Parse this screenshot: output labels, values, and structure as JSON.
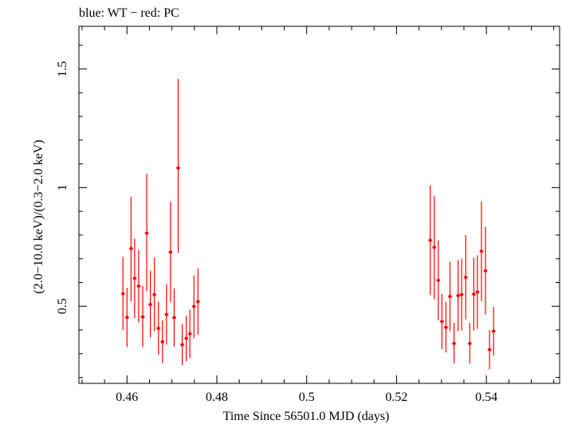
{
  "chart_data": {
    "type": "scatter",
    "title": "blue: WT − red: PC",
    "xlabel": "Time Since 56501.0 MJD (days)",
    "ylabel": "(2.0−10.0 keV)/(0.3−2.0 keV)",
    "xlim": [
      0.4493,
      0.5563
    ],
    "ylim": [
      0.175,
      1.68
    ],
    "x_ticks": [
      {
        "value": 0.46,
        "label": "0.46"
      },
      {
        "value": 0.48,
        "label": "0.48"
      },
      {
        "value": 0.5,
        "label": "0.5"
      },
      {
        "value": 0.52,
        "label": "0.52"
      },
      {
        "value": 0.54,
        "label": "0.54"
      }
    ],
    "y_ticks": [
      {
        "value": 0.5,
        "label": "0.5"
      },
      {
        "value": 1,
        "label": "1"
      },
      {
        "value": 1.5,
        "label": "1.5"
      }
    ],
    "grid": false,
    "series": [
      {
        "color": "#ff0000",
        "points": [
          {
            "x": 0.4591,
            "y": 0.553,
            "ylo": 0.4,
            "yhi": 0.708
          },
          {
            "x": 0.46,
            "y": 0.453,
            "ylo": 0.328,
            "yhi": 0.578
          },
          {
            "x": 0.4609,
            "y": 0.743,
            "ylo": 0.52,
            "yhi": 0.962
          },
          {
            "x": 0.4617,
            "y": 0.618,
            "ylo": 0.45,
            "yhi": 0.785
          },
          {
            "x": 0.4626,
            "y": 0.585,
            "ylo": 0.432,
            "yhi": 0.738
          },
          {
            "x": 0.4635,
            "y": 0.455,
            "ylo": 0.328,
            "yhi": 0.585
          },
          {
            "x": 0.4644,
            "y": 0.808,
            "ylo": 0.563,
            "yhi": 1.058
          },
          {
            "x": 0.4652,
            "y": 0.507,
            "ylo": 0.368,
            "yhi": 0.65
          },
          {
            "x": 0.4661,
            "y": 0.549,
            "ylo": 0.395,
            "yhi": 0.705
          },
          {
            "x": 0.467,
            "y": 0.407,
            "ylo": 0.295,
            "yhi": 0.518
          },
          {
            "x": 0.4679,
            "y": 0.35,
            "ylo": 0.26,
            "yhi": 0.44
          },
          {
            "x": 0.4688,
            "y": 0.465,
            "ylo": 0.338,
            "yhi": 0.592
          },
          {
            "x": 0.4697,
            "y": 0.728,
            "ylo": 0.518,
            "yhi": 0.94
          },
          {
            "x": 0.4705,
            "y": 0.452,
            "ylo": 0.33,
            "yhi": 0.575
          },
          {
            "x": 0.4714,
            "y": 1.083,
            "ylo": 0.725,
            "yhi": 1.458
          },
          {
            "x": 0.4723,
            "y": 0.338,
            "ylo": 0.252,
            "yhi": 0.425
          },
          {
            "x": 0.4732,
            "y": 0.365,
            "ylo": 0.268,
            "yhi": 0.46
          },
          {
            "x": 0.474,
            "y": 0.384,
            "ylo": 0.282,
            "yhi": 0.486
          },
          {
            "x": 0.4749,
            "y": 0.499,
            "ylo": 0.365,
            "yhi": 0.63
          },
          {
            "x": 0.4758,
            "y": 0.519,
            "ylo": 0.38,
            "yhi": 0.66
          },
          {
            "x": 0.5275,
            "y": 0.778,
            "ylo": 0.548,
            "yhi": 1.01
          },
          {
            "x": 0.5284,
            "y": 0.748,
            "ylo": 0.53,
            "yhi": 0.965
          },
          {
            "x": 0.5293,
            "y": 0.609,
            "ylo": 0.44,
            "yhi": 0.778
          },
          {
            "x": 0.5301,
            "y": 0.436,
            "ylo": 0.32,
            "yhi": 0.552
          },
          {
            "x": 0.531,
            "y": 0.411,
            "ylo": 0.305,
            "yhi": 0.518
          },
          {
            "x": 0.5319,
            "y": 0.541,
            "ylo": 0.395,
            "yhi": 0.688
          },
          {
            "x": 0.5328,
            "y": 0.343,
            "ylo": 0.258,
            "yhi": 0.43
          },
          {
            "x": 0.5337,
            "y": 0.545,
            "ylo": 0.395,
            "yhi": 0.695
          },
          {
            "x": 0.5345,
            "y": 0.549,
            "ylo": 0.398,
            "yhi": 0.7
          },
          {
            "x": 0.5354,
            "y": 0.622,
            "ylo": 0.445,
            "yhi": 0.8
          },
          {
            "x": 0.5363,
            "y": 0.343,
            "ylo": 0.258,
            "yhi": 0.43
          },
          {
            "x": 0.5372,
            "y": 0.551,
            "ylo": 0.398,
            "yhi": 0.705
          },
          {
            "x": 0.538,
            "y": 0.56,
            "ylo": 0.405,
            "yhi": 0.715
          },
          {
            "x": 0.5389,
            "y": 0.732,
            "ylo": 0.522,
            "yhi": 0.942
          },
          {
            "x": 0.5398,
            "y": 0.649,
            "ylo": 0.465,
            "yhi": 0.835
          },
          {
            "x": 0.5407,
            "y": 0.317,
            "ylo": 0.235,
            "yhi": 0.4
          },
          {
            "x": 0.5416,
            "y": 0.395,
            "ylo": 0.292,
            "yhi": 0.498
          }
        ]
      }
    ]
  }
}
